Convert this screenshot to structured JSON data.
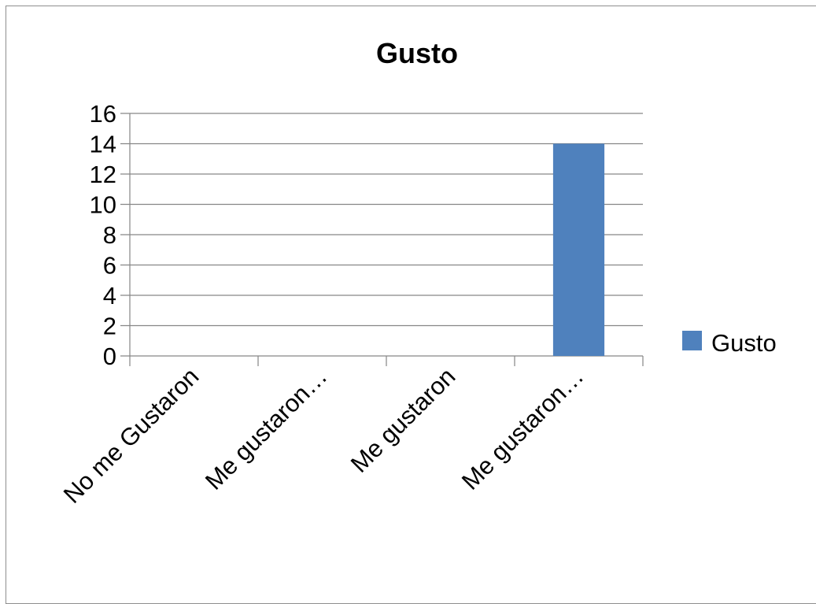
{
  "chart_data": {
    "type": "bar",
    "title": "Gusto",
    "categories": [
      "No me Gustaron",
      "Me gustaron…",
      "Me gustaron",
      "Me gustaron…"
    ],
    "series": [
      {
        "name": "Gusto",
        "values": [
          0,
          0,
          0,
          14
        ],
        "color": "#4f81bd"
      }
    ],
    "ylim": [
      0,
      16
    ],
    "yticks": [
      0,
      2,
      4,
      6,
      8,
      10,
      12,
      14,
      16
    ],
    "grid": true,
    "legend": "right"
  }
}
